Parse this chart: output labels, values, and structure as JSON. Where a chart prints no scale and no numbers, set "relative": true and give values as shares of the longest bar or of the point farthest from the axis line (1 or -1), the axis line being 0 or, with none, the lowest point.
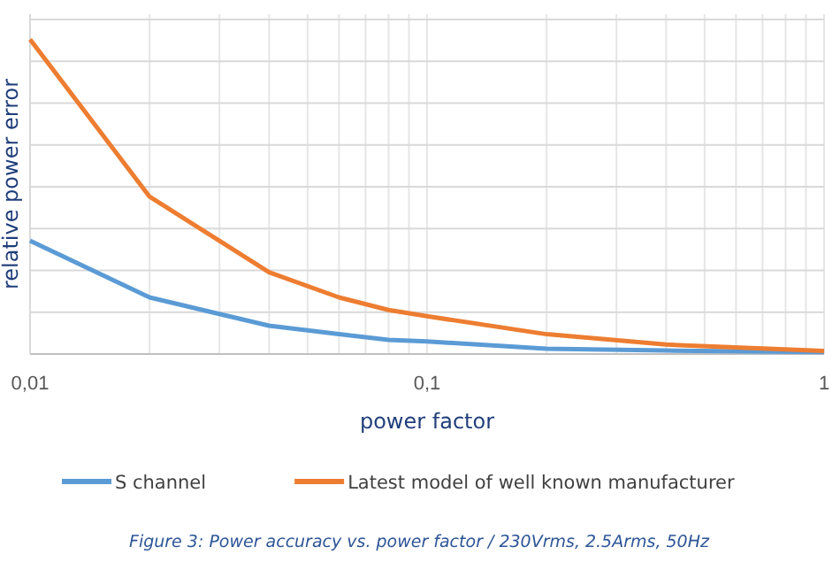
{
  "chart_data": {
    "type": "line",
    "xlabel": "power factor",
    "ylabel": "relative power error",
    "log": "x",
    "relative": true,
    "grid": true,
    "legend": "bottom",
    "marker": "none",
    "line_style": "solid",
    "xlim": [
      0.01,
      1
    ],
    "xticks": [
      {
        "value": 0.01,
        "label": "0,01"
      },
      {
        "value": 0.02,
        "label": null
      },
      {
        "value": 0.03,
        "label": null
      },
      {
        "value": 0.04,
        "label": null
      },
      {
        "value": 0.05,
        "label": null
      },
      {
        "value": 0.06,
        "label": null
      },
      {
        "value": 0.07,
        "label": null
      },
      {
        "value": 0.08,
        "label": null
      },
      {
        "value": 0.09,
        "label": null
      },
      {
        "value": 0.1,
        "label": "0,1"
      },
      {
        "value": 0.2,
        "label": null
      },
      {
        "value": 0.3,
        "label": null
      },
      {
        "value": 0.4,
        "label": null
      },
      {
        "value": 0.5,
        "label": null
      },
      {
        "value": 0.6,
        "label": null
      },
      {
        "value": 0.7,
        "label": null
      },
      {
        "value": 0.8,
        "label": null
      },
      {
        "value": 0.9,
        "label": null
      },
      {
        "value": 1,
        "label": "1"
      }
    ],
    "x": [
      0.01,
      0.02,
      0.04,
      0.06,
      0.08,
      0.1,
      0.2,
      0.4,
      1
    ],
    "series": [
      {
        "name": "S channel",
        "color": "#5b9bd5",
        "values": [
          0.36,
          0.18,
          0.09,
          0.063,
          0.045,
          0.04,
          0.017,
          0.011,
          0.006
        ]
      },
      {
        "name": "Latest model of well known manufacturer",
        "color": "#ed7d31",
        "values": [
          1,
          0.5,
          0.26,
          0.18,
          0.14,
          0.12,
          0.063,
          0.03,
          0.01
        ]
      }
    ],
    "annotations": [
      "Figure 3: Power accuracy vs. power factor / 230Vrms, 2.5Arms, 50Hz"
    ]
  }
}
